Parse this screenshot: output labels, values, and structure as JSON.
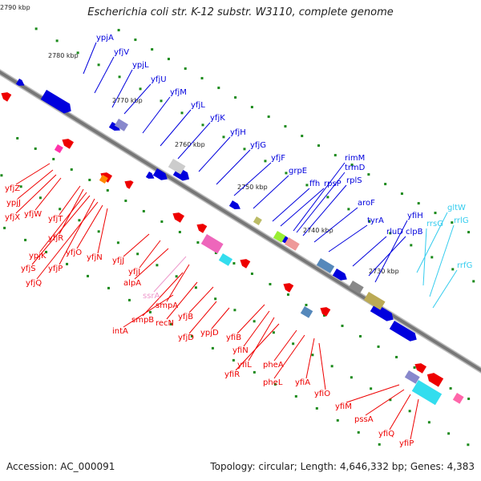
{
  "title": "Escherichia coli str. K-12 substr. W3110, complete genome",
  "footer": {
    "accession": "Accession: AC_000091",
    "topology": "Topology: circular; Length: 4,646,332 bp; Genes: 4,383"
  },
  "ticks": [
    "2790 kbp",
    "2780 kbp",
    "2770 kbp",
    "2760 kbp",
    "2750 kbp",
    "2740 kbp",
    "2730 kbp"
  ],
  "colors": {
    "forward": "#0000dd",
    "reverse": "#ee0000",
    "rna": "#33ccee",
    "pseudo_rna": "#ee99cc",
    "backbone": "#777777"
  },
  "forward_labels": [
    "ypjA",
    "yfjV",
    "ypjL",
    "yfjU",
    "yfjM",
    "yfjL",
    "yfjK",
    "yfjH",
    "yfjG",
    "yfjF",
    "grpE",
    "ffh",
    "rpsP",
    "rimM",
    "trmD",
    "rplS",
    "aroF",
    "tyrA",
    "rluD",
    "clpB",
    "yfiH"
  ],
  "rna_labels": [
    "gltW",
    "rrsG",
    "rrlG",
    "rrfG"
  ],
  "reverse_labels": [
    "yfjZ",
    "ypjJ",
    "yfjX",
    "yfjW",
    "yfjT",
    "yfjR",
    "ypjK",
    "yfjS",
    "yfjP",
    "yfjQ",
    "yfjO",
    "yfjN",
    "yfjJ",
    "yfjI",
    "alpA",
    "ssrA",
    "smpA",
    "smpB",
    "recN",
    "intA",
    "yfjB",
    "yfjD",
    "ypjD",
    "yfiB",
    "yfiN",
    "yfiL",
    "yfiR",
    "pheA",
    "pheL",
    "yfiA",
    "yfiO",
    "yfiM",
    "pssA",
    "yfiQ",
    "yfiP"
  ],
  "reverse_dark": [
    "yfjZ",
    "ypjJ",
    "yfjX",
    "yfjW",
    "yfjT",
    "yfjR",
    "ypjK",
    "yfjS",
    "yfjP",
    "yfjQ",
    "yfjO",
    "yfjN",
    "yfjJ",
    "yfjI",
    "alpA",
    "smpA",
    "smpB",
    "recN",
    "intA",
    "yfjB",
    "yfjD",
    "ypjD",
    "yfiB",
    "yfiN",
    "yfiL",
    "yfiR",
    "pheA",
    "pheL",
    "yfiA",
    "yfiO",
    "yfiM",
    "pssA",
    "yfiQ",
    "yfiP"
  ],
  "pseudo_labels": [
    "ssrA"
  ]
}
